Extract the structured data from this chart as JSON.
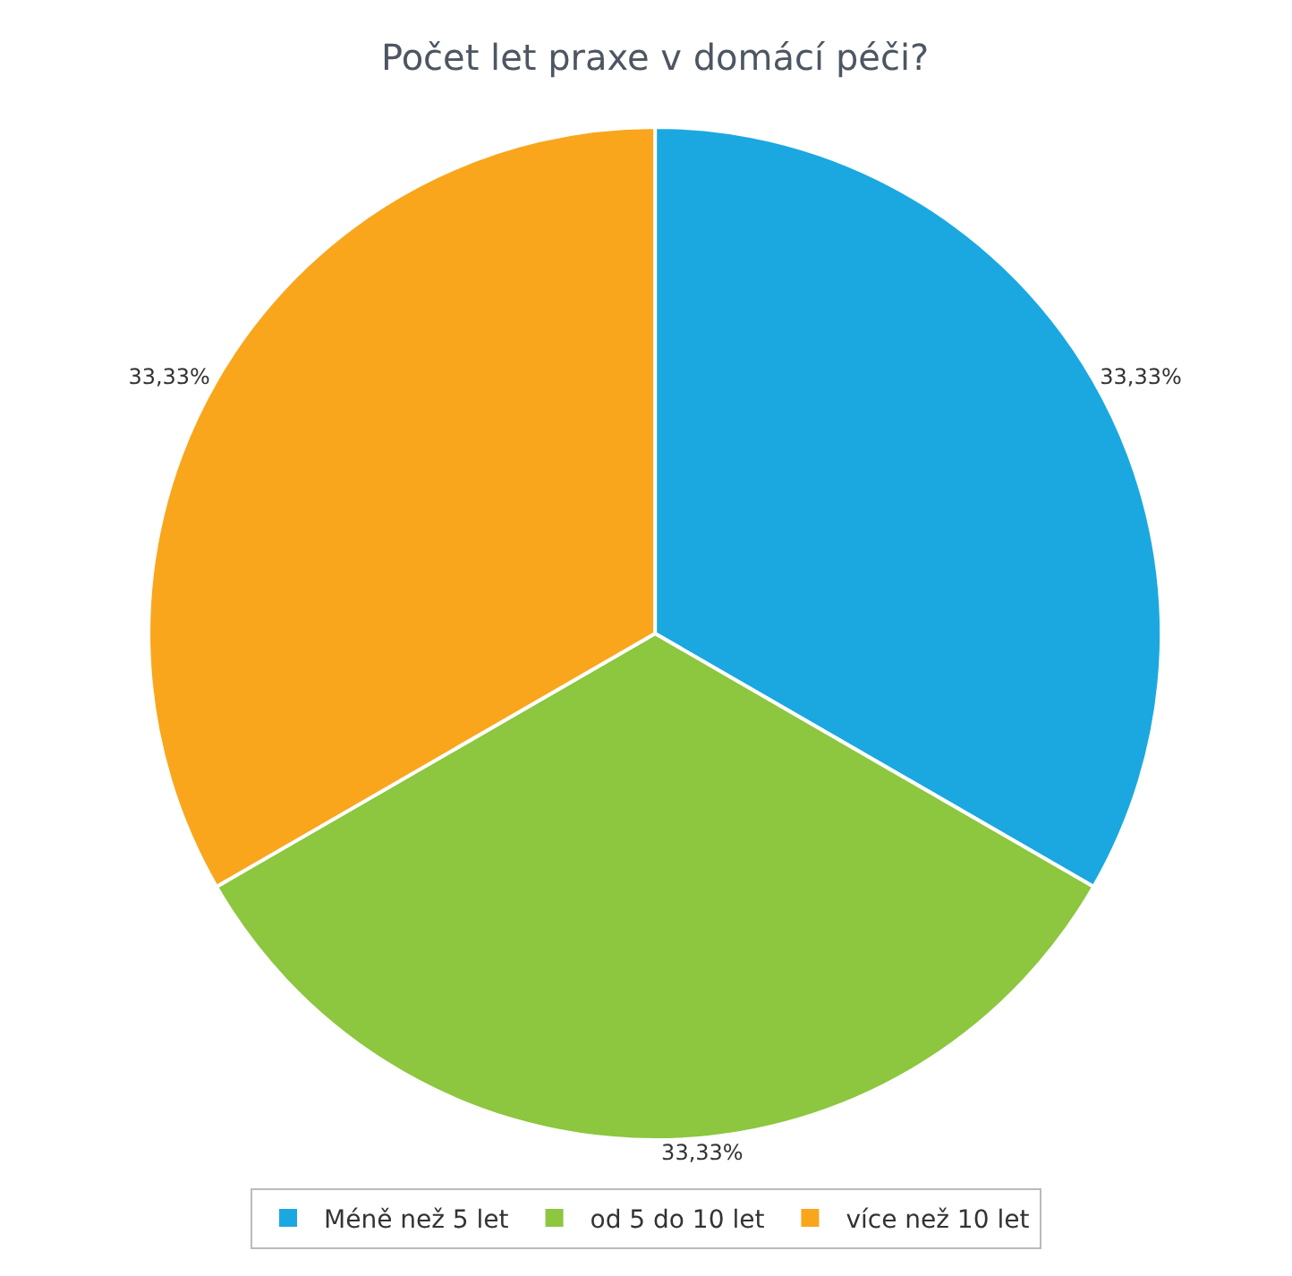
{
  "chart_data": {
    "type": "pie",
    "title": "Počet let praxe v domácí péči?",
    "categories": [
      "Méně než 5 let",
      "od 5 do 10 let",
      "více než 10 let"
    ],
    "values": [
      33.33,
      33.33,
      33.33
    ],
    "value_labels": [
      "33,33%",
      "33,33%",
      "33,33%"
    ],
    "colors": [
      "#1ba8e1",
      "#8dc63f",
      "#f9a61d"
    ],
    "legend": "bottom"
  }
}
